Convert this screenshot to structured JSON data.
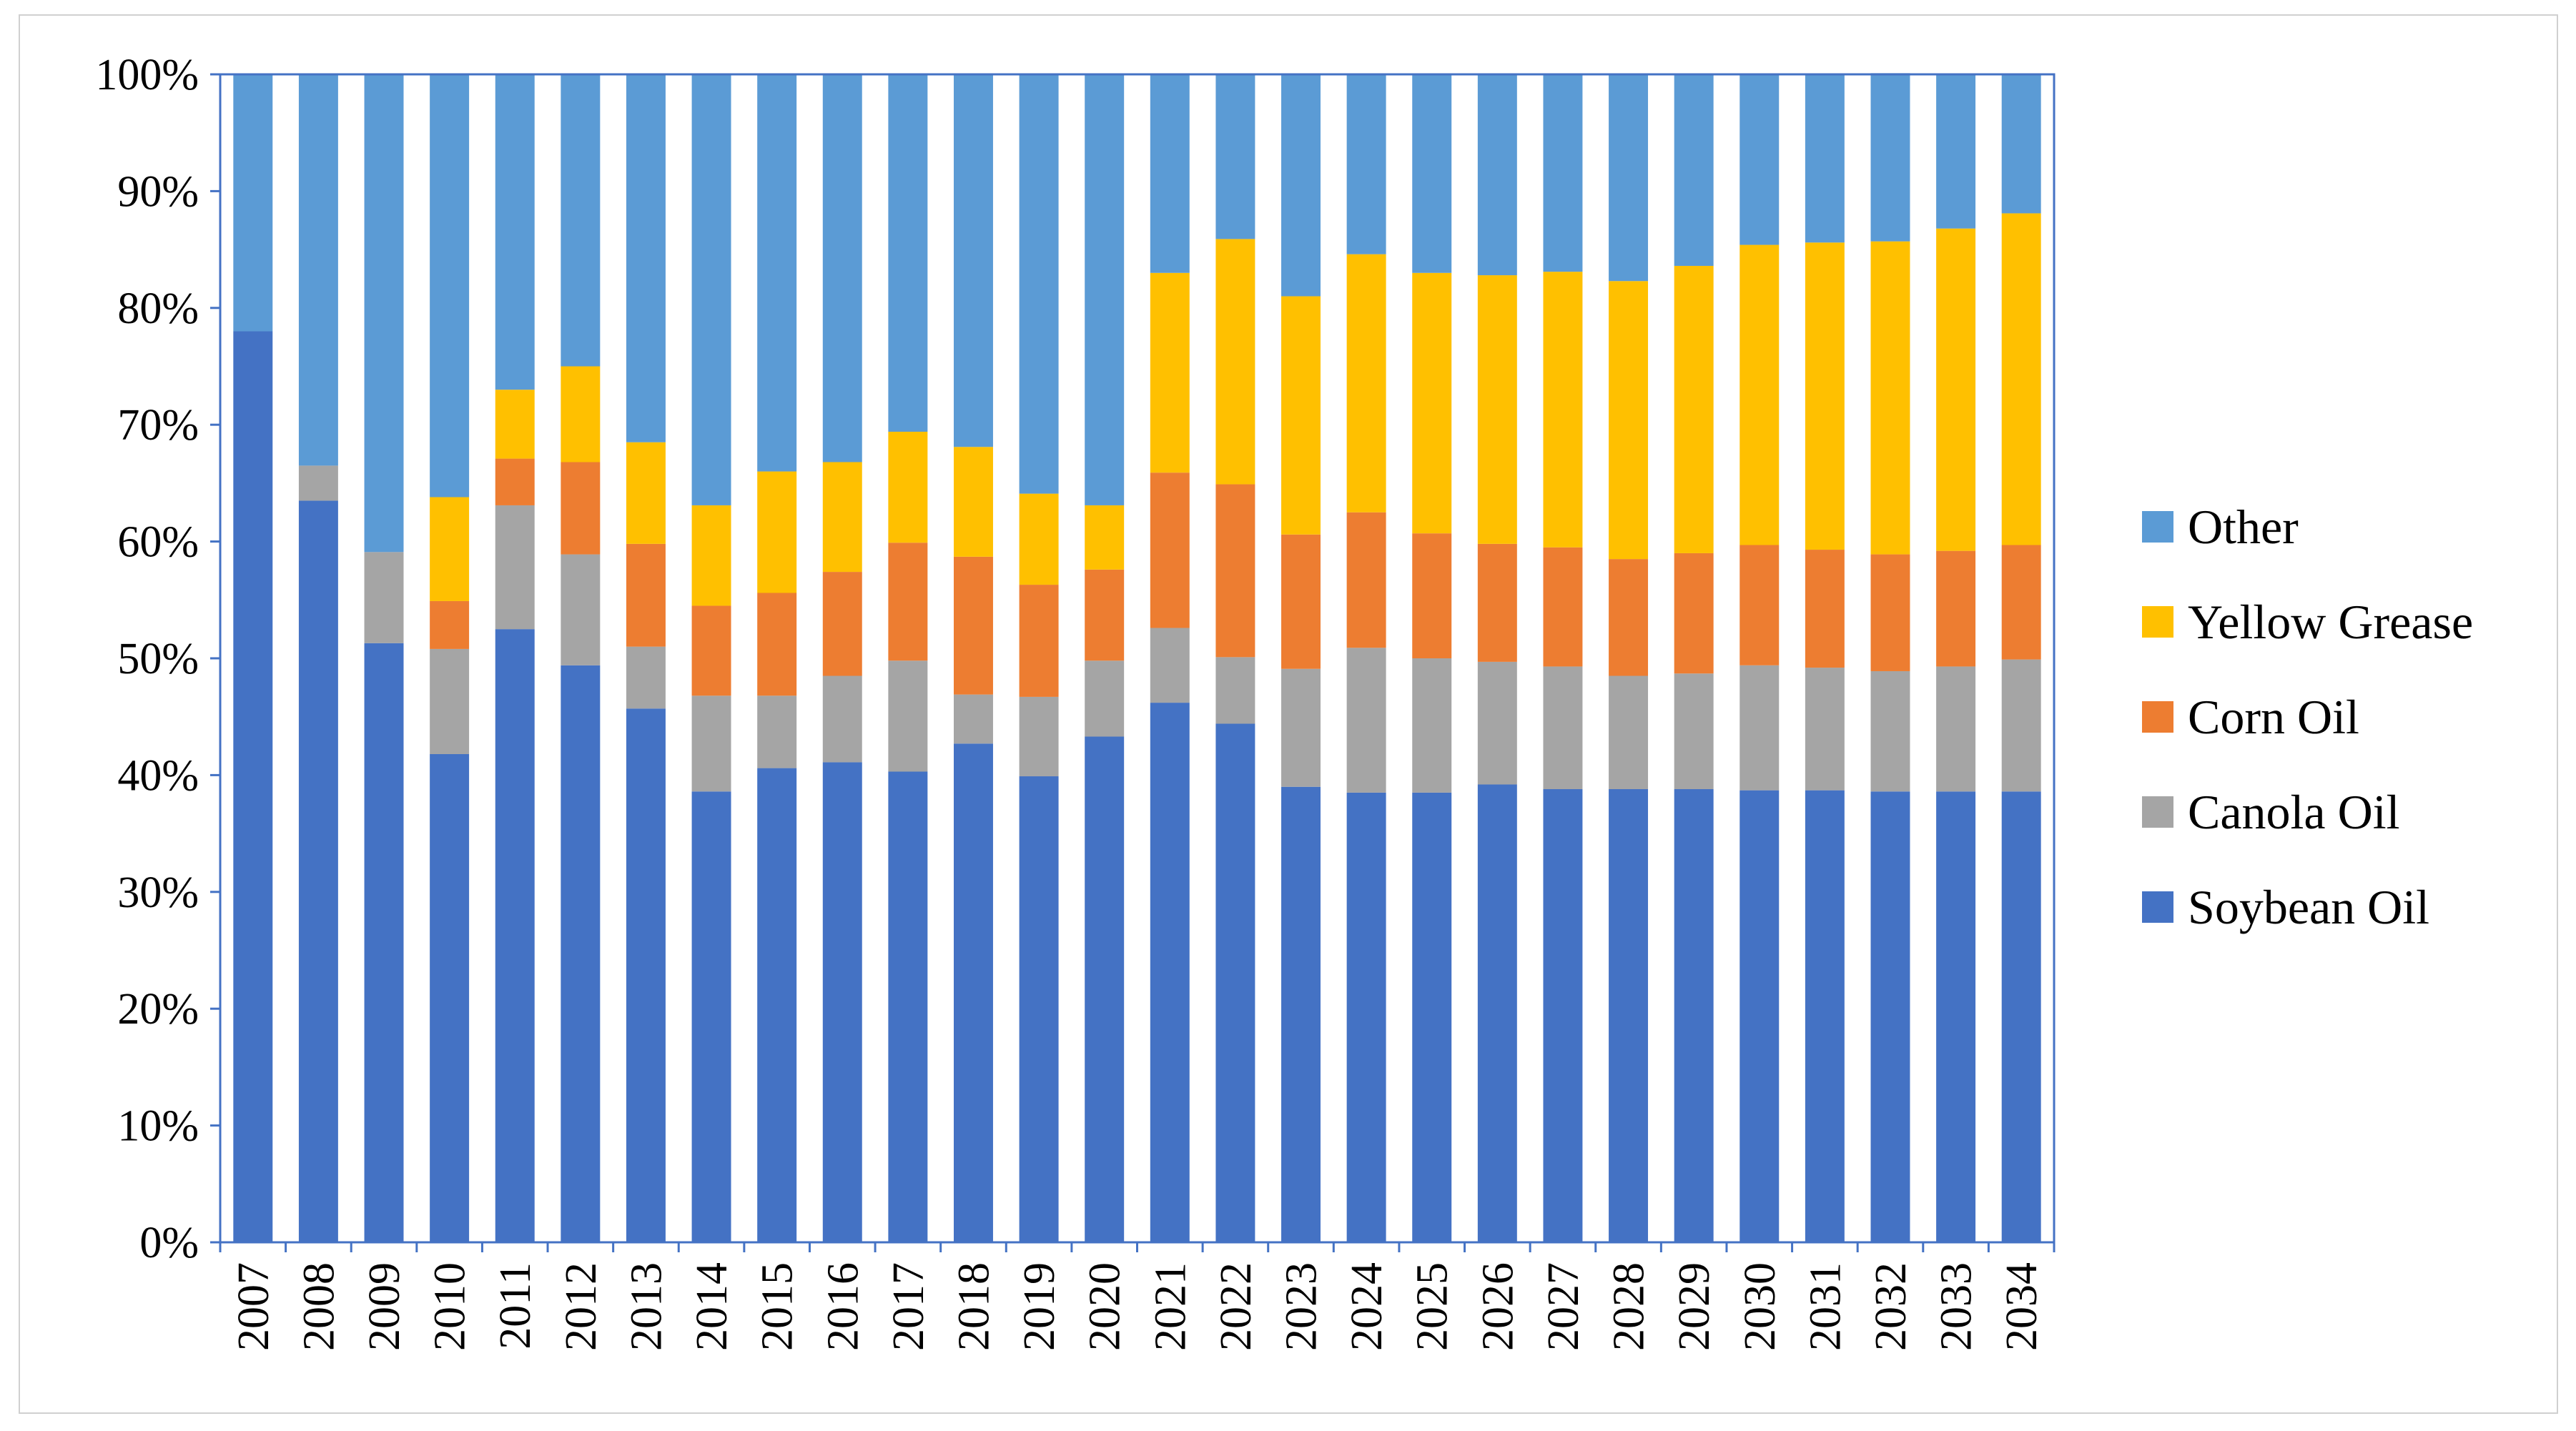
{
  "chart_data": {
    "type": "bar",
    "stacked": true,
    "percent_stacked": true,
    "title": "",
    "xlabel": "",
    "ylabel": "",
    "ylim": [
      0,
      100
    ],
    "yticks": [
      "0%",
      "10%",
      "20%",
      "30%",
      "40%",
      "50%",
      "60%",
      "70%",
      "80%",
      "90%",
      "100%"
    ],
    "grid": false,
    "legend_position": "right",
    "categories": [
      "2007",
      "2008",
      "2009",
      "2010",
      "2011",
      "2012",
      "2013",
      "2014",
      "2015",
      "2016",
      "2017",
      "2018",
      "2019",
      "2020",
      "2021",
      "2022",
      "2023",
      "2024",
      "2025",
      "2026",
      "2027",
      "2028",
      "2029",
      "2030",
      "2031",
      "2032",
      "2033",
      "2034"
    ],
    "series": [
      {
        "name": "Soybean Oil",
        "color": "#4472C4",
        "values": [
          78,
          63.5,
          51.3,
          41.8,
          52.5,
          49.4,
          45.7,
          38.6,
          40.6,
          41.1,
          40.3,
          42.7,
          39.9,
          43.3,
          46.2,
          44.4,
          39,
          38.5,
          38.5,
          39.2,
          38.8,
          38.8,
          38.8,
          38.7,
          38.7,
          38.6,
          38.6,
          38.6
        ]
      },
      {
        "name": "Canola Oil",
        "color": "#A5A5A5",
        "values": [
          0,
          3,
          7.8,
          9,
          10.6,
          9.5,
          5.3,
          8.2,
          6.2,
          7.4,
          9.5,
          4.2,
          6.8,
          6.5,
          6.4,
          5.7,
          10.1,
          12.4,
          11.5,
          10.5,
          10.5,
          9.7,
          9.9,
          10.7,
          10.5,
          10.3,
          10.7,
          11.3
        ]
      },
      {
        "name": "Corn Oil",
        "color": "#ED7D31",
        "values": [
          0,
          0,
          0,
          4.1,
          4,
          7.9,
          8.8,
          7.7,
          8.8,
          8.9,
          10.1,
          11.8,
          9.6,
          7.8,
          13.3,
          14.8,
          11.5,
          11.6,
          10.7,
          10.1,
          10.2,
          10,
          10.3,
          10.3,
          10.1,
          10,
          9.9,
          9.8
        ]
      },
      {
        "name": "Yellow Grease",
        "color": "#FFC000",
        "values": [
          0,
          0,
          0,
          8.9,
          5.9,
          8.2,
          8.7,
          8.6,
          10.4,
          9.4,
          9.5,
          9.4,
          7.8,
          5.5,
          17.1,
          21,
          20.4,
          22.1,
          22.3,
          23,
          23.6,
          23.8,
          24.6,
          25.7,
          26.3,
          26.8,
          27.6,
          28.4
        ]
      },
      {
        "name": "Other",
        "color": "#5B9BD5",
        "values": [
          22,
          33.5,
          40.9,
          36.2,
          27,
          25,
          31.5,
          36.9,
          34,
          33.2,
          30.6,
          31.9,
          35.9,
          36.9,
          17,
          14.1,
          19,
          15.4,
          17,
          17.2,
          16.9,
          17.7,
          16.4,
          14.6,
          14.4,
          14.4,
          13.2,
          11.9
        ]
      }
    ],
    "legend_order": [
      "Other",
      "Yellow Grease",
      "Corn Oil",
      "Canola Oil",
      "Soybean Oil"
    ]
  }
}
